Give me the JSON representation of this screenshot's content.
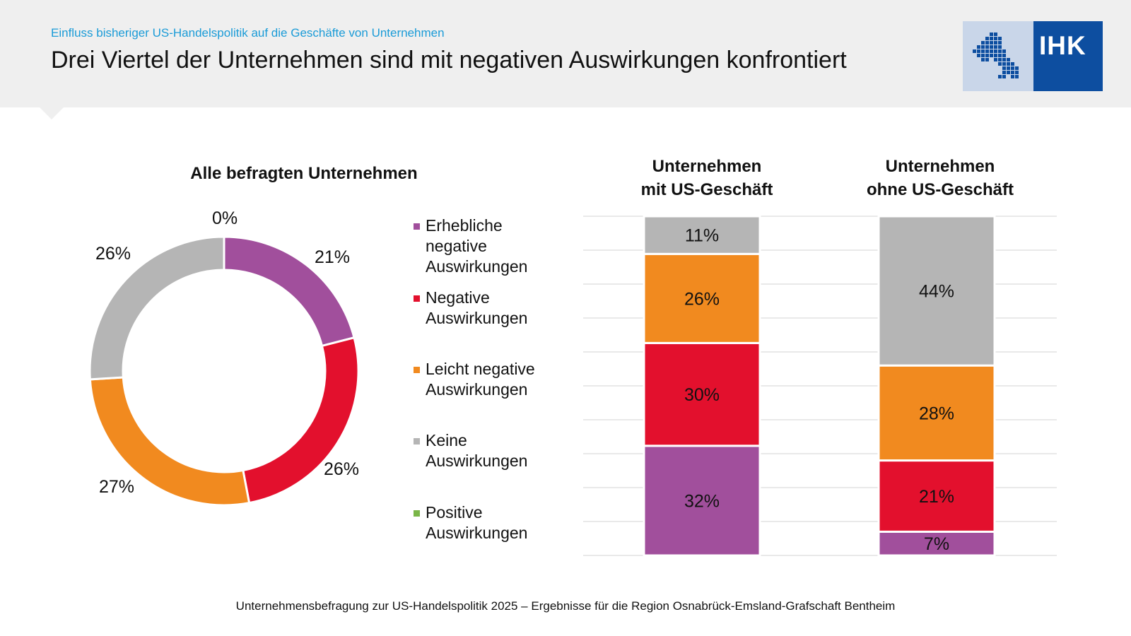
{
  "header": {
    "kicker": "Einfluss bisheriger US-Handelspolitik auf die Geschäfte von Unternehmen",
    "headline": "Drei Viertel der Unternehmen sind mit negativen Auswirkungen konfrontiert",
    "logo_text": "IHK"
  },
  "colors": {
    "erheblich": "#a14f9c",
    "negativ": "#e3102d",
    "leicht": "#f18a1f",
    "keine": "#b5b5b5",
    "positiv": "#7ab648",
    "kicker": "#1a9bd7",
    "logo_blue": "#0d4ea0",
    "logo_light": "#c9d6e9"
  },
  "legend": [
    {
      "key": "erheblich",
      "label": "Erhebliche negative Auswirkungen"
    },
    {
      "key": "negativ",
      "label": "Negative Auswirkungen"
    },
    {
      "key": "leicht",
      "label": "Leicht negative Auswirkungen"
    },
    {
      "key": "keine",
      "label": "Keine Auswirkungen"
    },
    {
      "key": "positiv",
      "label": "Positive Auswirkungen"
    }
  ],
  "chart_data": [
    {
      "type": "pie",
      "subtype": "donut",
      "title": "Alle befragten Unternehmen",
      "categories": [
        "Erhebliche negative Auswirkungen",
        "Negative Auswirkungen",
        "Leicht negative Auswirkungen",
        "Keine Auswirkungen",
        "Positive Auswirkungen"
      ],
      "keys": [
        "erheblich",
        "negativ",
        "leicht",
        "keine",
        "positiv"
      ],
      "values": [
        21,
        26,
        27,
        26,
        0
      ],
      "labels": [
        "21%",
        "26%",
        "27%",
        "26%",
        "0%"
      ],
      "unit": "%"
    },
    {
      "type": "bar",
      "subtype": "stacked",
      "title_line1": "Unternehmen",
      "title_line2": "mit US-Geschäft",
      "categories": [
        "Unternehmen mit US-Geschäft",
        "Unternehmen ohne US-Geschäft"
      ],
      "series": [
        {
          "name": "Erhebliche negative Auswirkungen",
          "key": "erheblich",
          "values": [
            32,
            7
          ],
          "labels": [
            "32%",
            "7%"
          ]
        },
        {
          "name": "Negative Auswirkungen",
          "key": "negativ",
          "values": [
            30,
            21
          ],
          "labels": [
            "30%",
            "21%"
          ]
        },
        {
          "name": "Leicht negative Auswirkungen",
          "key": "leicht",
          "values": [
            26,
            28
          ],
          "labels": [
            "26%",
            "28%"
          ]
        },
        {
          "name": "Keine Auswirkungen",
          "key": "keine",
          "values": [
            11,
            44
          ],
          "labels": [
            "11%",
            "44%"
          ]
        }
      ],
      "ylim": [
        0,
        100
      ],
      "unit": "%"
    }
  ],
  "bar_titles": {
    "mit_line1": "Unternehmen",
    "mit_line2": "mit US-Geschäft",
    "ohne_line1": "Unternehmen",
    "ohne_line2": "ohne US-Geschäft"
  },
  "footer": "Unternehmensbefragung zur US-Handelspolitik 2025 – Ergebnisse für die Region Osnabrück-Emsland-Grafschaft Bentheim"
}
